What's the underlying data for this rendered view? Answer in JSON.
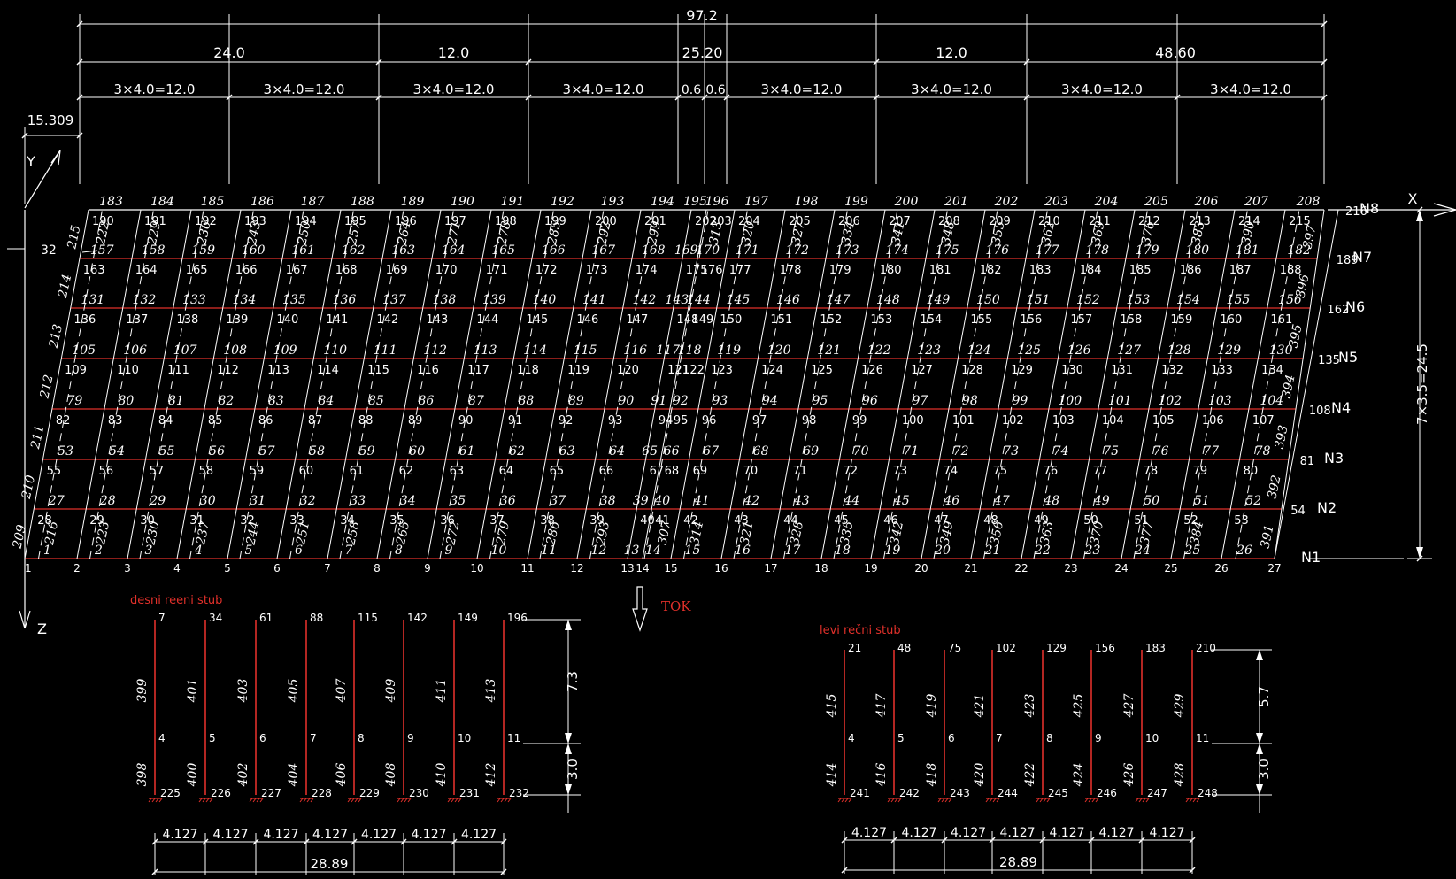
{
  "dimensions": {
    "total": "97.2",
    "spans": [
      "24.0",
      "12.0",
      "25.20",
      "12.0",
      "48.60"
    ],
    "sub_spans": [
      "3x4.0=12.0",
      "3x4.0=12.0",
      "3x4.0=12.0",
      "3x4.0=12.0",
      "0.6",
      "0.6",
      "3x4.0=12.0",
      "3x4.0=12.0",
      "3x4.0=12.0",
      "3x4.0=12.0"
    ],
    "left_offset": "15.309",
    "side_offset": "32",
    "height": "7x3.5=24.5"
  },
  "axes": {
    "y": "Y",
    "z": "Z",
    "x": "X"
  },
  "rows": [
    "N1",
    "N2",
    "N3",
    "N4",
    "N5",
    "N6",
    "N7",
    "N8"
  ],
  "grid": {
    "node_labels": [
      [
        "1",
        "2",
        "3",
        "4",
        "5",
        "6",
        "7",
        "8",
        "9",
        "10",
        "11",
        "12",
        "13",
        "14",
        "15",
        "16",
        "17",
        "18",
        "19",
        "20",
        "21",
        "22",
        "23",
        "24",
        "25",
        "26",
        "27"
      ],
      [
        "28",
        "29",
        "30",
        "31",
        "32",
        "33",
        "34",
        "35",
        "36",
        "37",
        "38",
        "39",
        "40",
        "41",
        "42",
        "43",
        "44",
        "45",
        "46",
        "47",
        "48",
        "49",
        "50",
        "51",
        "52",
        "53",
        "54"
      ],
      [
        "55",
        "56",
        "57",
        "58",
        "59",
        "60",
        "61",
        "62",
        "63",
        "64",
        "65",
        "66",
        "67",
        "68",
        "69",
        "70",
        "71",
        "72",
        "73",
        "74",
        "75",
        "76",
        "77",
        "78",
        "79",
        "80",
        "81"
      ],
      [
        "82",
        "83",
        "84",
        "85",
        "86",
        "87",
        "88",
        "89",
        "90",
        "91",
        "92",
        "93",
        "94",
        "95",
        "96",
        "97",
        "98",
        "99",
        "100",
        "101",
        "102",
        "103",
        "104",
        "105",
        "106",
        "107",
        "108"
      ],
      [
        "109",
        "110",
        "111",
        "112",
        "113",
        "114",
        "115",
        "116",
        "117",
        "118",
        "119",
        "120",
        "121",
        "122",
        "123",
        "124",
        "125",
        "126",
        "127",
        "128",
        "129",
        "130",
        "131",
        "132",
        "133",
        "134",
        "135"
      ],
      [
        "136",
        "137",
        "138",
        "139",
        "140",
        "141",
        "142",
        "143",
        "144",
        "145",
        "146",
        "147",
        "148",
        "149",
        "150",
        "151",
        "152",
        "153",
        "154",
        "155",
        "156",
        "157",
        "158",
        "159",
        "160",
        "161",
        "162"
      ],
      [
        "163",
        "164",
        "165",
        "166",
        "167",
        "168",
        "169",
        "170",
        "171",
        "172",
        "173",
        "174",
        "175",
        "176",
        "177",
        "178",
        "179",
        "180",
        "181",
        "182",
        "183",
        "184",
        "185",
        "186",
        "187",
        "188",
        "189"
      ],
      [
        "190",
        "191",
        "192",
        "193",
        "194",
        "195",
        "196",
        "197",
        "198",
        "199",
        "200",
        "201",
        "202",
        "203",
        "204",
        "205",
        "206",
        "207",
        "208",
        "209",
        "210",
        "211",
        "212",
        "213",
        "214",
        "215",
        "216"
      ]
    ],
    "beam_labels": [
      [
        "1",
        "2",
        "3",
        "4",
        "5",
        "6",
        "7",
        "8",
        "9",
        "10",
        "11",
        "12",
        "13",
        "14",
        "15",
        "16",
        "17",
        "18",
        "19",
        "20",
        "21",
        "22",
        "23",
        "24",
        "25",
        "26"
      ],
      [
        "27",
        "28",
        "29",
        "30",
        "31",
        "32",
        "33",
        "34",
        "35",
        "36",
        "37",
        "38",
        "39",
        "40",
        "41",
        "42",
        "43",
        "44",
        "45",
        "46",
        "47",
        "48",
        "49",
        "50",
        "51",
        "52"
      ],
      [
        "53",
        "54",
        "55",
        "56",
        "57",
        "58",
        "59",
        "60",
        "61",
        "62",
        "63",
        "64",
        "65",
        "66",
        "67",
        "68",
        "69",
        "70",
        "71",
        "72",
        "73",
        "74",
        "75",
        "76",
        "77",
        "78"
      ],
      [
        "79",
        "80",
        "81",
        "82",
        "83",
        "84",
        "85",
        "86",
        "87",
        "88",
        "89",
        "90",
        "91",
        "92",
        "93",
        "94",
        "95",
        "96",
        "97",
        "98",
        "99",
        "100",
        "101",
        "102",
        "103",
        "104"
      ],
      [
        "105",
        "106",
        "107",
        "108",
        "109",
        "110",
        "111",
        "112",
        "113",
        "114",
        "115",
        "116",
        "117",
        "118",
        "119",
        "120",
        "121",
        "122",
        "123",
        "124",
        "125",
        "126",
        "127",
        "128",
        "129",
        "130"
      ],
      [
        "131",
        "132",
        "133",
        "134",
        "135",
        "136",
        "137",
        "138",
        "139",
        "140",
        "141",
        "142",
        "143",
        "144",
        "145",
        "146",
        "147",
        "148",
        "149",
        "150",
        "151",
        "152",
        "153",
        "154",
        "155",
        "156"
      ],
      [
        "157",
        "158",
        "159",
        "160",
        "161",
        "162",
        "163",
        "164",
        "165",
        "166",
        "167",
        "168",
        "169",
        "170",
        "171",
        "172",
        "173",
        "174",
        "175",
        "176",
        "177",
        "178",
        "179",
        "180",
        "181",
        "182"
      ],
      [
        "183",
        "184",
        "185",
        "186",
        "187",
        "188",
        "189",
        "190",
        "191",
        "192",
        "193",
        "194",
        "195",
        "196",
        "197",
        "198",
        "199",
        "200",
        "201",
        "202",
        "203",
        "204",
        "205",
        "206",
        "207",
        "208"
      ]
    ],
    "left_edge_labels": [
      "209",
      "210",
      "211",
      "212",
      "213",
      "214",
      "215"
    ],
    "right_edge_labels": [
      "391",
      "392",
      "393",
      "394",
      "395",
      "396",
      "397"
    ],
    "cross_labels": [
      [
        "216",
        "223",
        "230",
        "237",
        "244",
        "251",
        "258",
        "265",
        "272",
        "279",
        "286",
        "293",
        "307",
        "314",
        "321",
        "328",
        "335",
        "342",
        "349",
        "356",
        "363",
        "370",
        "377",
        "384"
      ],
      [
        "222",
        "229",
        "236",
        "243",
        "250",
        "257",
        "264",
        "271",
        "278",
        "285",
        "292",
        "299",
        "313",
        "320",
        "327",
        "334",
        "341",
        "348",
        "355",
        "362",
        "369",
        "376",
        "383",
        "390"
      ]
    ]
  },
  "flow_label": "TOK",
  "pier_right": {
    "title": "desni reeni stub",
    "top_nodes": [
      "7",
      "34",
      "61",
      "88",
      "115",
      "142",
      "149",
      "196"
    ],
    "mid_nodes": [
      "4",
      "5",
      "6",
      "7",
      "8",
      "9",
      "10",
      "11"
    ],
    "base_nodes": [
      "225",
      "226",
      "227",
      "228",
      "229",
      "230",
      "231",
      "232"
    ],
    "upper_members": [
      "399",
      "401",
      "403",
      "405",
      "407",
      "409",
      "411",
      "413"
    ],
    "lower_members": [
      "398",
      "400",
      "402",
      "404",
      "406",
      "408",
      "410",
      "412"
    ],
    "height_upper": "7.3",
    "height_lower": "3.0",
    "spacing": [
      "4.127",
      "4.127",
      "4.127",
      "4.127",
      "4.127",
      "4.127",
      "4.127"
    ],
    "total": "28.89"
  },
  "pier_left": {
    "title": "levi rečni stub",
    "top_nodes": [
      "21",
      "48",
      "75",
      "102",
      "129",
      "156",
      "183",
      "210"
    ],
    "mid_nodes": [
      "4",
      "5",
      "6",
      "7",
      "8",
      "9",
      "10",
      "11"
    ],
    "base_nodes": [
      "241",
      "242",
      "243",
      "244",
      "245",
      "246",
      "247",
      "248"
    ],
    "upper_members": [
      "415",
      "417",
      "419",
      "421",
      "423",
      "425",
      "427",
      "429"
    ],
    "lower_members": [
      "414",
      "416",
      "418",
      "420",
      "422",
      "424",
      "426",
      "428"
    ],
    "height_upper": "5.7",
    "height_lower": "3.0",
    "spacing": [
      "4.127",
      "4.127",
      "4.127",
      "4.127",
      "4.127",
      "4.127",
      "4.127"
    ],
    "total": "28.89"
  }
}
